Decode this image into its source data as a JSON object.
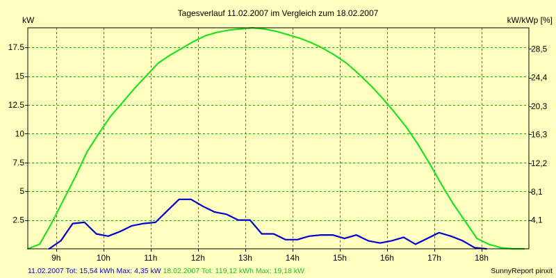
{
  "colors": {
    "background": "#ffffc0",
    "grid": "#00b000",
    "series1": "#0000d0",
    "series2": "#20e020",
    "frame": "#000000"
  },
  "chart_data": {
    "type": "line",
    "title": "Tagesverlauf 11.02.2007 im Vergleich zum 18.02.2007",
    "ylabel": "kW",
    "y2label": "kW/kWp [%]",
    "xlim": [
      8.4,
      19.0
    ],
    "ylim": [
      0,
      19.2
    ],
    "y2lim": [
      0,
      31.5
    ],
    "x_ticks": [
      9,
      10,
      11,
      12,
      13,
      14,
      15,
      16,
      17,
      18
    ],
    "x_tick_labels": [
      "9h",
      "10h",
      "11h",
      "12h",
      "13h",
      "14h",
      "15h",
      "16h",
      "17h",
      "18h"
    ],
    "y_ticks": [
      2.5,
      5,
      7.5,
      10,
      12.5,
      15,
      17.5
    ],
    "y_tick_labels": [
      "2.5",
      "5",
      "7.5",
      "10",
      "12.5",
      "15",
      "17.5"
    ],
    "y2_ticks": [
      4.1,
      8.1,
      12.2,
      16.3,
      20.3,
      24.4,
      28.5
    ],
    "y2_tick_labels": [
      "4,1",
      "8,1",
      "12,2",
      "16,3",
      "20,3",
      "24,4",
      "28,5"
    ],
    "grid": true,
    "series": [
      {
        "name": "11.02.2007",
        "color": "#0000d0",
        "x": [
          8.85,
          9.1,
          9.35,
          9.6,
          9.85,
          10.1,
          10.35,
          10.6,
          10.85,
          11.1,
          11.35,
          11.6,
          11.85,
          12.1,
          12.35,
          12.6,
          12.85,
          13.1,
          13.35,
          13.6,
          13.85,
          14.1,
          14.35,
          14.6,
          14.85,
          15.1,
          15.35,
          15.6,
          15.85,
          16.1,
          16.35,
          16.6,
          16.85,
          17.1,
          17.35,
          17.6,
          17.85,
          18.1
        ],
        "y": [
          0.0,
          0.7,
          2.2,
          2.3,
          1.3,
          1.1,
          1.5,
          2.0,
          2.2,
          2.3,
          3.3,
          4.3,
          4.3,
          3.7,
          3.2,
          3.0,
          2.5,
          2.5,
          1.3,
          1.3,
          0.8,
          0.8,
          1.1,
          1.2,
          1.2,
          0.9,
          1.2,
          0.7,
          0.5,
          0.7,
          1.0,
          0.4,
          0.9,
          1.4,
          1.1,
          0.7,
          0.1,
          0.0
        ]
      },
      {
        "name": "18.02.2007",
        "color": "#20e020",
        "x": [
          8.4,
          8.65,
          8.9,
          9.15,
          9.4,
          9.65,
          9.9,
          10.15,
          10.4,
          10.65,
          10.9,
          11.15,
          11.4,
          11.65,
          11.9,
          12.15,
          12.4,
          12.65,
          12.9,
          13.15,
          13.4,
          13.65,
          13.9,
          14.15,
          14.4,
          14.65,
          14.9,
          15.15,
          15.4,
          15.65,
          15.9,
          16.15,
          16.4,
          16.65,
          16.9,
          17.15,
          17.4,
          17.65,
          17.9,
          18.15,
          18.4,
          18.65,
          18.9
        ],
        "y": [
          0.0,
          0.4,
          2.2,
          4.2,
          6.2,
          8.4,
          10.0,
          11.5,
          12.7,
          13.9,
          15.0,
          16.1,
          16.8,
          17.4,
          18.0,
          18.5,
          18.8,
          19.0,
          19.1,
          19.2,
          19.1,
          18.9,
          18.6,
          18.3,
          17.9,
          17.4,
          16.8,
          16.1,
          15.2,
          14.2,
          13.1,
          11.9,
          10.6,
          9.1,
          7.4,
          5.6,
          3.9,
          2.4,
          0.9,
          0.4,
          0.1,
          0.0,
          0.0
        ]
      }
    ]
  },
  "footer": {
    "series1_text": "11.02.2007 Tot: 15,54 kWh Max: 4,35 kW",
    "series2_text": "18.02.2007 Tot: 119,12 kWh Max: 19,18 kW",
    "credit": "SunnyReport pinxit"
  }
}
